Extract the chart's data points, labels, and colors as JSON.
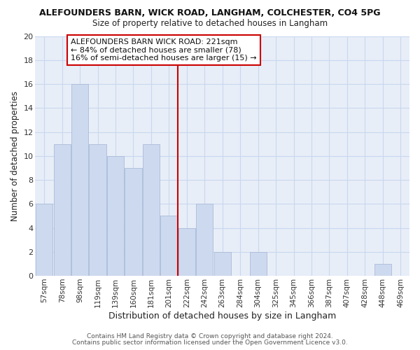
{
  "title": "ALEFOUNDERS BARN, WICK ROAD, LANGHAM, COLCHESTER, CO4 5PG",
  "subtitle": "Size of property relative to detached houses in Langham",
  "xlabel": "Distribution of detached houses by size in Langham",
  "ylabel": "Number of detached properties",
  "bar_labels": [
    "57sqm",
    "78sqm",
    "98sqm",
    "119sqm",
    "139sqm",
    "160sqm",
    "181sqm",
    "201sqm",
    "222sqm",
    "242sqm",
    "263sqm",
    "284sqm",
    "304sqm",
    "325sqm",
    "345sqm",
    "366sqm",
    "387sqm",
    "407sqm",
    "428sqm",
    "448sqm",
    "469sqm"
  ],
  "bar_values": [
    6,
    11,
    16,
    11,
    10,
    9,
    11,
    5,
    4,
    6,
    2,
    0,
    2,
    0,
    0,
    0,
    0,
    0,
    0,
    1,
    0
  ],
  "bar_color": "#cdd9ee",
  "bar_edge_color": "#aabbd8",
  "grid_color": "#c8d8ee",
  "background_color": "#ffffff",
  "plot_bg_color": "#e8eef8",
  "vline_color": "#cc0000",
  "vline_x_index": 8,
  "annotation_text": "ALEFOUNDERS BARN WICK ROAD: 221sqm\n← 84% of detached houses are smaller (78)\n16% of semi-detached houses are larger (15) →",
  "annotation_box_color": "#ffffff",
  "annotation_box_edge": "#cc0000",
  "ylim": [
    0,
    20
  ],
  "yticks": [
    0,
    2,
    4,
    6,
    8,
    10,
    12,
    14,
    16,
    18,
    20
  ],
  "footer1": "Contains HM Land Registry data © Crown copyright and database right 2024.",
  "footer2": "Contains public sector information licensed under the Open Government Licence v3.0."
}
